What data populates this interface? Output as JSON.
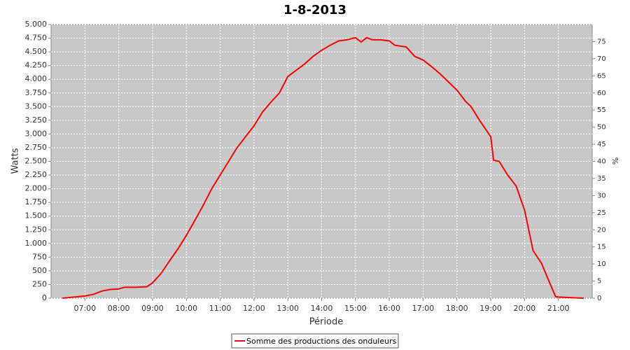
{
  "chart_data": {
    "type": "line",
    "title": "1-8-2013",
    "xlabel": "Période",
    "ylabel": "Watts",
    "y2label": "%",
    "x": [
      "06:20",
      "06:40",
      "07:00",
      "07:15",
      "07:30",
      "07:45",
      "08:00",
      "08:10",
      "08:30",
      "08:50",
      "09:00",
      "09:15",
      "09:30",
      "09:45",
      "10:00",
      "10:15",
      "10:30",
      "10:45",
      "11:00",
      "11:15",
      "11:30",
      "11:45",
      "12:00",
      "12:15",
      "12:30",
      "12:45",
      "13:00",
      "13:30",
      "13:45",
      "14:00",
      "14:15",
      "14:30",
      "14:45",
      "15:00",
      "15:10",
      "15:20",
      "15:30",
      "15:45",
      "16:00",
      "16:10",
      "16:30",
      "16:45",
      "17:00",
      "17:15",
      "17:30",
      "17:45",
      "18:00",
      "18:15",
      "18:25",
      "18:40",
      "19:00",
      "19:05",
      "19:15",
      "19:30",
      "19:45",
      "20:00",
      "20:15",
      "20:30",
      "20:45",
      "20:55",
      "21:00",
      "21:45"
    ],
    "series": [
      {
        "name": "Somme des productions des onduleurs",
        "color": "#ff0000",
        "values": [
          0,
          20,
          40,
          70,
          130,
          160,
          170,
          200,
          200,
          210,
          280,
          450,
          680,
          900,
          1150,
          1420,
          1700,
          2000,
          2250,
          2500,
          2750,
          2950,
          3150,
          3400,
          3580,
          3750,
          4050,
          4280,
          4420,
          4530,
          4620,
          4700,
          4720,
          4760,
          4680,
          4760,
          4720,
          4720,
          4700,
          4620,
          4590,
          4420,
          4350,
          4230,
          4100,
          3950,
          3800,
          3600,
          3500,
          3250,
          2950,
          2520,
          2500,
          2250,
          2050,
          1610,
          870,
          640,
          270,
          30,
          20,
          0
        ]
      }
    ],
    "xlim": [
      "06:00",
      "22:00"
    ],
    "xticks": [
      "07:00",
      "08:00",
      "09:00",
      "10:00",
      "11:00",
      "12:00",
      "13:00",
      "14:00",
      "15:00",
      "16:00",
      "17:00",
      "18:00",
      "19:00",
      "20:00",
      "21:00"
    ],
    "ylim": [
      0,
      5000
    ],
    "yticks": [
      0,
      250,
      500,
      750,
      {
        "value": 1000,
        "label": "1.000"
      },
      {
        "value": 1250,
        "label": "1.250"
      },
      {
        "value": 1500,
        "label": "1.500"
      },
      {
        "value": 1750,
        "label": "1.750"
      },
      {
        "value": 2000,
        "label": "2.000"
      },
      {
        "value": 2250,
        "label": "2.250"
      },
      {
        "value": 2500,
        "label": "2.500"
      },
      {
        "value": 2750,
        "label": "2.750"
      },
      {
        "value": 3000,
        "label": "3.000"
      },
      {
        "value": 3250,
        "label": "3.250"
      },
      {
        "value": 3500,
        "label": "3.500"
      },
      {
        "value": 3750,
        "label": "3.750"
      },
      {
        "value": 4000,
        "label": "4.000"
      },
      {
        "value": 4250,
        "label": "4.250"
      },
      {
        "value": 4500,
        "label": "4.500"
      },
      {
        "value": 4750,
        "label": "4.750"
      },
      {
        "value": 5000,
        "label": "5.000"
      }
    ],
    "y2lim": [
      0,
      80
    ],
    "y2ticks": [
      0,
      5,
      10,
      15,
      20,
      25,
      30,
      35,
      40,
      45,
      50,
      55,
      60,
      65,
      70,
      75
    ],
    "grid": true,
    "legend": "bottom"
  }
}
